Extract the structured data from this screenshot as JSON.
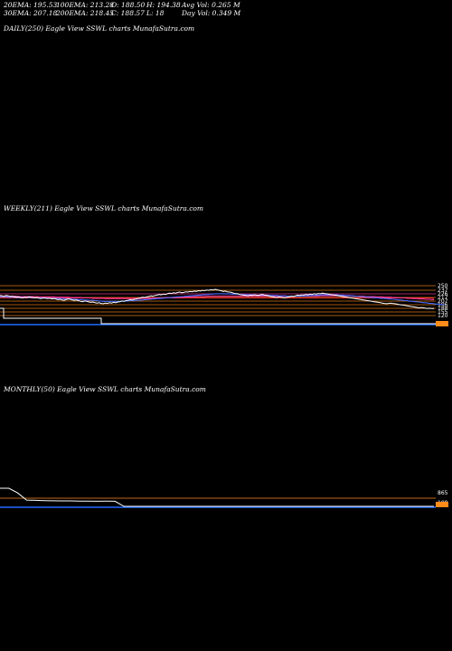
{
  "header": {
    "ema20": "20EMA: 195.53",
    "ema30": "30EMA: 207.18",
    "ema100": "100EMA: 213.28",
    "ema200": "200EMA: 218.45",
    "open": "O: 188.50",
    "close": "C: 188.57",
    "high": "H: 194.38",
    "low": "L: 18",
    "avg_vol": "Avg Vol: 0.265 M",
    "day_vol": "Day Vol: 0.349 M"
  },
  "panels": {
    "daily_label": "DAILY(250) Eagle  View  SSWL  charts MunafaSutra.com",
    "weekly_label": "WEEKLY(211) Eagle  View  SSWL  charts MunafaSutra.com",
    "monthly_label": "MONTHLY(50) Eagle  View  SSWL  charts MunafaSutra.com"
  },
  "colors": {
    "background": "#000000",
    "price": "#ffffff",
    "ema_short": "#4a6cff",
    "ema_mid": "#ff3aa0",
    "ema_long": "#ff3030",
    "level": "#ff8c1a",
    "volume": "#ffffff",
    "volume_band": "#1e6cff"
  },
  "chart_data": [
    {
      "type": "line",
      "title": "WEEKLY(211) Eagle  View  SSWL  charts MunafaSutra.com",
      "x_count": 211,
      "level_labels": [
        "250",
        "237",
        "226",
        "217",
        "207",
        "196",
        "188",
        "155",
        "120"
      ],
      "series": [
        {
          "values": [
            226,
            225,
            224,
            226,
            225,
            223,
            224,
            222,
            221,
            222,
            220,
            219,
            221,
            220,
            222,
            221,
            220,
            219,
            220,
            218,
            217,
            219,
            218,
            217,
            218,
            216,
            217,
            216,
            214,
            215,
            213,
            212,
            214,
            216,
            215,
            213,
            212,
            213,
            211,
            209,
            208,
            210,
            209,
            207,
            206,
            207,
            205,
            204,
            205,
            203,
            202,
            204,
            203,
            205,
            204,
            206,
            205,
            207,
            208,
            210,
            209,
            211,
            212,
            214,
            213,
            215,
            216,
            218,
            219,
            221,
            220,
            222,
            223,
            225,
            224,
            226,
            227,
            229,
            228,
            230,
            229,
            231,
            233,
            232,
            234,
            233,
            235,
            236,
            234,
            235,
            237,
            236,
            238,
            237,
            239,
            238,
            240,
            239,
            241,
            240,
            242,
            241,
            243,
            242,
            244,
            243,
            241,
            240,
            238,
            239,
            237,
            236,
            235,
            233,
            232,
            231,
            229,
            228,
            227,
            226,
            225,
            227,
            226,
            228,
            227,
            226,
            228,
            229,
            227,
            226,
            225,
            223,
            222,
            221,
            220,
            222,
            221,
            220,
            219,
            221,
            222,
            224,
            223,
            225,
            227,
            226,
            228,
            227,
            229,
            228,
            230,
            229,
            231,
            230,
            232,
            231,
            233,
            232,
            231,
            230,
            229,
            228,
            227,
            226,
            225,
            224,
            223,
            222,
            221,
            220,
            219,
            218,
            217,
            216,
            215,
            214,
            213,
            212,
            211,
            210,
            209,
            208,
            207,
            206,
            205,
            204,
            203,
            202,
            203,
            204,
            203,
            202,
            201,
            200,
            199,
            198,
            197,
            196,
            195,
            194,
            193,
            192,
            191,
            190,
            191,
            190,
            189,
            188,
            189,
            188,
            188
          ]
        },
        {
          "values": [
            222,
            222,
            222,
            222,
            221,
            221,
            221,
            221,
            220,
            220,
            220,
            220,
            220,
            220,
            220,
            220,
            220,
            219,
            219,
            219,
            219,
            219,
            219,
            218,
            218,
            218,
            218,
            217,
            217,
            217,
            217,
            216,
            216,
            216,
            216,
            215,
            215,
            215,
            214,
            214,
            214,
            213,
            213,
            212,
            212,
            212,
            211,
            211,
            210,
            210,
            209,
            209,
            209,
            209,
            209,
            209,
            209,
            209,
            209,
            210,
            210,
            210,
            210,
            211,
            211,
            211,
            212,
            212,
            213,
            213,
            214,
            214,
            215,
            215,
            216,
            216,
            217,
            217,
            218,
            218,
            219,
            219,
            220,
            220,
            221,
            221,
            222,
            222,
            223,
            223,
            224,
            224,
            225,
            225,
            226,
            226,
            227,
            227,
            228,
            228,
            229,
            229,
            230,
            230,
            231,
            231,
            231,
            231,
            231,
            231,
            231,
            231,
            230,
            230,
            230,
            230,
            229,
            229,
            229,
            228,
            228,
            228,
            228,
            228,
            227,
            227,
            227,
            227,
            227,
            227,
            227,
            226,
            226,
            226,
            226,
            225,
            225,
            225,
            225,
            224,
            224,
            224,
            224,
            224,
            224,
            224,
            224,
            225,
            225,
            225,
            226,
            226,
            226,
            227,
            227,
            227,
            228,
            228,
            228,
            228,
            228,
            228,
            228,
            228,
            227,
            227,
            227,
            226,
            226,
            226,
            225,
            225,
            224,
            224,
            223,
            223,
            222,
            222,
            221,
            221,
            220,
            220,
            219,
            219,
            218,
            218,
            217,
            217,
            216,
            216,
            215,
            215,
            214,
            213,
            213,
            212,
            211,
            211,
            210,
            209,
            209,
            208,
            207,
            207,
            206,
            205,
            205,
            204,
            203,
            203,
            202,
            201,
            201,
            200,
            200,
            199
          ]
        },
        {
          "values": [
            224,
            224,
            224,
            224,
            224,
            224,
            224,
            224,
            224,
            223,
            223,
            223,
            223,
            223,
            223,
            223,
            223,
            223,
            223,
            222,
            222,
            222,
            222,
            222,
            222,
            222,
            222,
            221,
            221,
            221,
            221,
            221,
            221,
            221,
            220,
            220,
            220,
            220,
            220,
            220,
            219,
            219,
            219,
            219,
            219,
            218,
            218,
            218,
            218,
            218,
            218,
            217,
            217,
            217,
            217,
            217,
            217,
            217,
            217,
            217,
            217,
            217,
            217,
            217,
            217,
            217,
            217,
            217,
            217,
            218,
            218,
            218,
            218,
            218,
            218,
            219,
            219,
            219,
            219,
            219,
            220,
            220,
            220,
            220,
            220,
            221,
            221,
            221,
            221,
            221,
            222,
            222,
            222,
            222,
            222,
            223,
            223,
            223,
            223,
            223,
            224,
            224,
            224,
            224,
            224,
            224,
            224,
            224,
            224,
            224,
            224,
            224,
            224,
            224,
            224,
            224,
            224,
            224,
            224,
            224,
            224,
            224,
            224,
            224,
            224,
            224,
            224,
            224,
            224,
            224,
            224,
            224,
            224,
            224,
            224,
            224,
            224,
            224,
            224,
            224,
            224,
            224,
            224,
            224,
            224,
            224,
            224,
            224,
            224,
            224,
            224,
            224,
            224,
            224,
            224,
            225,
            225,
            225,
            225,
            225,
            225,
            225,
            225,
            225,
            225,
            225,
            225,
            225,
            225,
            225,
            225,
            224,
            224,
            224,
            224,
            224,
            224,
            223,
            223,
            223,
            223,
            223,
            222,
            222,
            222,
            222,
            221,
            221,
            221,
            221,
            220,
            220,
            220,
            219,
            219,
            219,
            219,
            218,
            218,
            218,
            217,
            217,
            217,
            216,
            216,
            216,
            215,
            215,
            215,
            214,
            214
          ]
        },
        {
          "values": [
            219,
            219,
            219,
            219,
            219,
            219,
            219,
            219,
            219,
            219,
            219,
            219,
            219,
            219,
            219,
            219,
            219,
            219,
            219,
            219,
            219,
            219,
            219,
            219,
            219,
            219,
            219,
            219,
            219,
            219,
            219,
            219,
            219,
            219,
            219,
            219,
            219,
            219,
            219,
            219,
            219,
            219,
            219,
            219,
            219,
            219,
            219,
            219,
            219,
            219,
            219,
            219,
            219,
            219,
            219,
            219,
            219,
            219,
            219,
            219,
            219,
            219,
            219,
            219,
            219,
            219,
            219,
            219,
            219,
            219,
            219,
            219,
            219,
            219,
            219,
            219,
            219,
            219,
            219,
            219,
            219,
            219,
            219,
            219,
            219,
            219,
            219,
            219,
            219,
            219,
            219,
            219,
            219,
            219,
            219,
            219,
            219,
            219,
            219,
            219,
            219,
            219,
            219,
            219,
            219,
            219,
            219,
            219,
            219,
            219,
            219,
            219,
            219,
            219,
            219,
            219,
            219,
            219,
            219,
            219,
            219,
            219,
            219,
            219,
            219,
            219,
            219,
            219,
            219,
            219,
            219,
            219,
            219,
            219,
            219,
            219,
            219,
            219,
            219,
            219,
            219,
            219,
            219,
            219,
            219,
            219,
            219,
            219,
            219,
            219,
            219,
            219,
            219,
            219,
            219,
            219,
            219,
            219,
            219,
            219,
            219,
            219,
            219,
            219,
            219,
            219,
            219,
            219,
            219,
            219,
            219,
            219,
            219,
            219,
            219,
            219,
            219,
            219,
            219,
            219,
            219,
            219,
            219,
            219,
            219,
            219,
            219,
            219,
            219,
            219,
            219,
            219,
            219,
            219,
            219,
            219,
            219,
            219,
            219,
            219,
            219,
            219,
            219,
            219,
            219,
            219,
            219,
            219,
            219,
            219,
            218
          ]
        }
      ]
    },
    {
      "type": "line",
      "title": "MONTHLY(50) Eagle  View  SSWL  charts MunafaSutra.com",
      "x_count": 50,
      "level_labels": [
        "865",
        "188"
      ],
      "series": [
        {
          "values": [
            865,
            865,
            690,
            420,
            410,
            400,
            395,
            390,
            392,
            385,
            380,
            378,
            380,
            376,
            188,
            188,
            188,
            188,
            188,
            188,
            188,
            188,
            188,
            188,
            188,
            188,
            188,
            188,
            188,
            188,
            188,
            188,
            188,
            188,
            188,
            188,
            188,
            188,
            188,
            188,
            188,
            188,
            188,
            188,
            188,
            188,
            188,
            188,
            188,
            188
          ]
        }
      ]
    }
  ]
}
